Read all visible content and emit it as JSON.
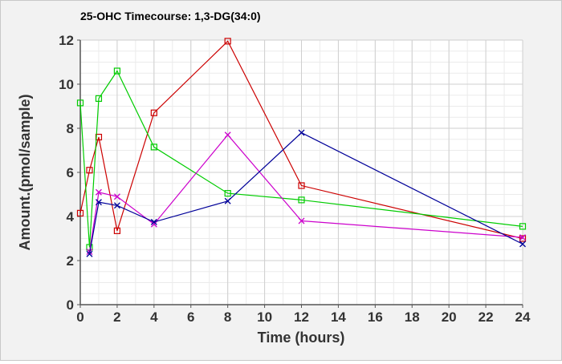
{
  "chart_data": {
    "type": "line",
    "title": "25-OHC Timecourse: 1,3-DG(34:0)",
    "xlabel": "Time (hours)",
    "ylabel": "Amount.(pmol/sample)",
    "xlim": [
      0,
      24
    ],
    "ylim": [
      0,
      12
    ],
    "xticks": [
      0,
      2,
      4,
      6,
      8,
      10,
      12,
      14,
      16,
      18,
      20,
      22,
      24
    ],
    "yticks": [
      0,
      2,
      4,
      6,
      8,
      10,
      12
    ],
    "grid": true,
    "legend": "none",
    "series": [
      {
        "color": "#cc0000",
        "marker": "square",
        "x": [
          0,
          0.5,
          1,
          2,
          4,
          8,
          12,
          24
        ],
        "y": [
          4.15,
          6.1,
          7.6,
          3.35,
          8.7,
          11.95,
          5.4,
          3.0
        ]
      },
      {
        "color": "#00cc00",
        "marker": "square",
        "x": [
          0,
          0.5,
          1,
          2,
          4,
          8,
          12,
          24
        ],
        "y": [
          9.15,
          2.6,
          9.35,
          10.6,
          7.15,
          5.05,
          4.75,
          3.55
        ]
      },
      {
        "color": "#cc00cc",
        "marker": "x",
        "x": [
          0.5,
          1,
          2,
          4,
          8,
          12,
          24
        ],
        "y": [
          2.4,
          5.1,
          4.9,
          3.65,
          7.7,
          3.8,
          3.05
        ]
      },
      {
        "color": "#000099",
        "marker": "x",
        "x": [
          0.5,
          1,
          2,
          4,
          8,
          12,
          24
        ],
        "y": [
          2.3,
          4.65,
          4.5,
          3.75,
          4.7,
          7.8,
          2.75
        ]
      }
    ]
  }
}
